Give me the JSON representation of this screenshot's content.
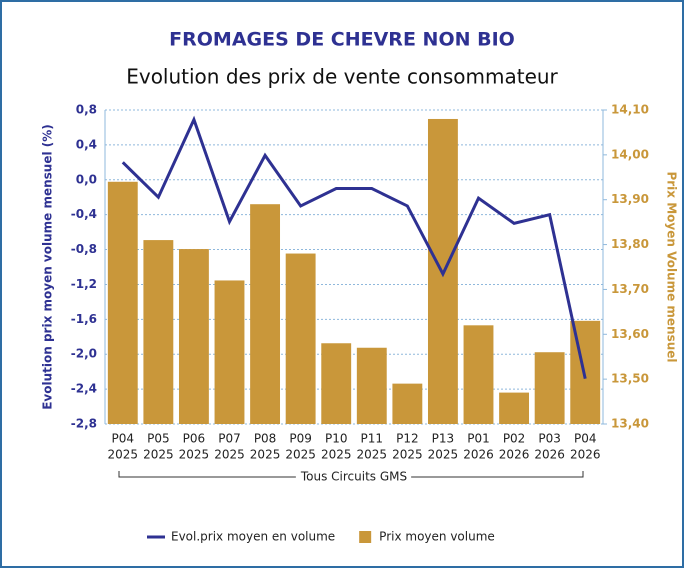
{
  "chart_data": {
    "type": "bar-line",
    "title": "FROMAGES DE CHEVRE NON BIO",
    "subtitle": "Evolution des prix de vente consommateur",
    "y_label": "Evolution prix moyen volume mensuel (%)",
    "y2_label": "Prix Moyen Volume mensuel",
    "group_label": "Tous Circuits GMS",
    "categories": [
      [
        "P04",
        "2025"
      ],
      [
        "P05",
        "2025"
      ],
      [
        "P06",
        "2025"
      ],
      [
        "P07",
        "2025"
      ],
      [
        "P08",
        "2025"
      ],
      [
        "P09",
        "2025"
      ],
      [
        "P10",
        "2025"
      ],
      [
        "P11",
        "2025"
      ],
      [
        "P12",
        "2025"
      ],
      [
        "P13",
        "2025"
      ],
      [
        "P01",
        "2026"
      ],
      [
        "P02",
        "2026"
      ],
      [
        "P03",
        "2026"
      ],
      [
        "P04",
        "2026"
      ]
    ],
    "series": [
      {
        "name": "Evol.prix moyen en volume",
        "kind": "line",
        "color": "#2e3192",
        "axis": "y",
        "values": [
          0.2,
          -0.2,
          0.69,
          -0.48,
          0.28,
          -0.3,
          -0.1,
          -0.1,
          -0.3,
          -1.08,
          -0.21,
          -0.5,
          -0.4,
          -2.28
        ]
      },
      {
        "name": "Prix moyen volume",
        "kind": "bar",
        "color": "#c9973a",
        "axis": "y2",
        "values": [
          13.94,
          13.81,
          13.79,
          13.72,
          13.89,
          13.78,
          13.58,
          13.57,
          13.49,
          14.08,
          13.62,
          13.47,
          13.56,
          13.63
        ]
      }
    ],
    "ylim": [
      -2.8,
      0.8
    ],
    "yticks": [
      {
        "value": 0.8,
        "label": "0,8"
      },
      {
        "value": 0.4,
        "label": "0,4"
      },
      {
        "value": 0,
        "label": "0,0"
      },
      {
        "value": -0.4,
        "label": "-0,4"
      },
      {
        "value": -0.8,
        "label": "-0,8"
      },
      {
        "value": -1.2,
        "label": "-1,2"
      },
      {
        "value": -1.6,
        "label": "-1,6"
      },
      {
        "value": -2,
        "label": "-2,0"
      },
      {
        "value": -2.4,
        "label": "-2,4"
      },
      {
        "value": -2.8,
        "label": "-2,8"
      }
    ],
    "y2lim": [
      13.4,
      14.1
    ],
    "y2ticks": [
      {
        "value": 14.1,
        "label": "14,10"
      },
      {
        "value": 14,
        "label": "14,00"
      },
      {
        "value": 13.9,
        "label": "13,90"
      },
      {
        "value": 13.8,
        "label": "13,80"
      },
      {
        "value": 13.7,
        "label": "13,70"
      },
      {
        "value": 13.6,
        "label": "13,60"
      },
      {
        "value": 13.5,
        "label": "13,50"
      },
      {
        "value": 13.4,
        "label": "13,40"
      }
    ],
    "grid": true
  }
}
